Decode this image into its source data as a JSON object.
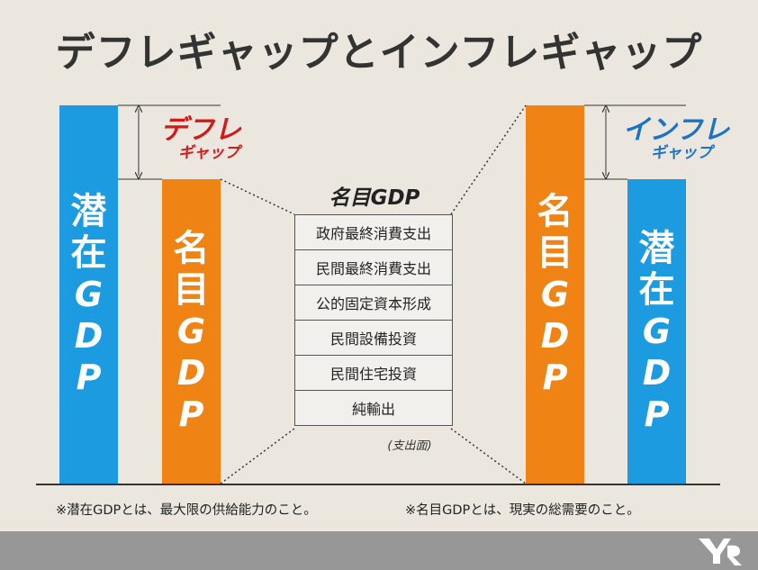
{
  "title": "デフレギャップとインフレギャップ",
  "left": {
    "potential": {
      "kanji1": "潜",
      "kanji2": "在",
      "g": "G",
      "d": "D",
      "p": "P"
    },
    "nominal": {
      "kanji1": "名",
      "kanji2": "目",
      "g": "G",
      "d": "D",
      "p": "P"
    },
    "gap_big": "デフレ",
    "gap_small": "ギャップ"
  },
  "right": {
    "nominal": {
      "kanji1": "名",
      "kanji2": "目",
      "g": "G",
      "d": "D",
      "p": "P"
    },
    "potential": {
      "kanji1": "潜",
      "kanji2": "在",
      "g": "G",
      "d": "D",
      "p": "P"
    },
    "gap_big": "インフレ",
    "gap_small": "ギャップ"
  },
  "nominal_gdp": {
    "title": "名目GDP",
    "components": [
      "政府最終消費支出",
      "民間最終消費支出",
      "公的固定資本形成",
      "民間設備投資",
      "民間住宅投資",
      "純輸出"
    ],
    "note": "(支出面)"
  },
  "notes": {
    "left": "※潜在GDPとは、最大限の供給能力のこと。",
    "right": "※名目GDPとは、現実の総需要のこと。"
  },
  "colors": {
    "blue": "#1c9be0",
    "orange": "#ef8314",
    "red": "#d41919",
    "dark_blue": "#1a73c6"
  }
}
